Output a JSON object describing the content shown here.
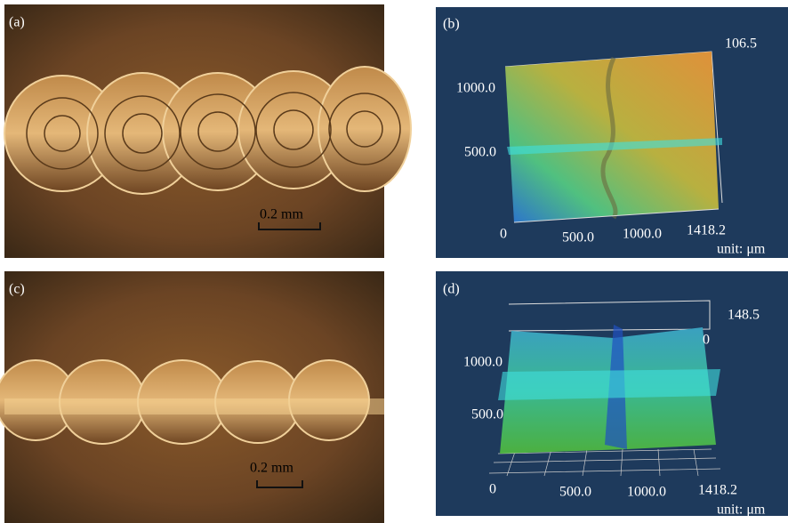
{
  "panels": [
    {
      "label": "(a)",
      "scale_bar": "0.2 mm"
    },
    {
      "label": "(b)",
      "z_max": "106.5",
      "y_ticks": [
        "1000.0",
        "500.0"
      ],
      "x_ticks": [
        "0",
        "500.0",
        "1000.0",
        "1418.2"
      ],
      "unit": "unit: μm"
    },
    {
      "label": "(c)",
      "scale_bar": "0.2 mm"
    },
    {
      "label": "(d)",
      "z_max": "148.5",
      "z_min": "0",
      "y_ticks": [
        "1000.0",
        "500.0"
      ],
      "x_ticks": [
        "0",
        "500.0",
        "1000.0",
        "1418.2"
      ],
      "unit": "unit: μm"
    }
  ]
}
